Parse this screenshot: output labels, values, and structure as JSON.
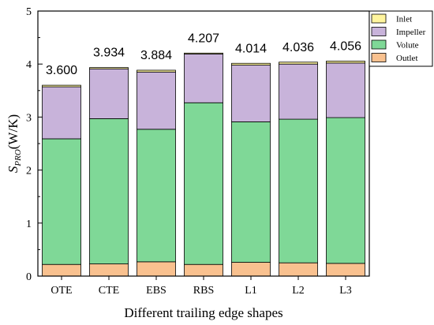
{
  "chart_data": {
    "type": "bar",
    "stacked": true,
    "categories": [
      "OTE",
      "CTE",
      "EBS",
      "RBS",
      "L1",
      "L2",
      "L3"
    ],
    "series": [
      {
        "name": "Outlet",
        "color": "#F9C18F",
        "values": [
          0.22,
          0.23,
          0.27,
          0.22,
          0.26,
          0.25,
          0.24
        ]
      },
      {
        "name": "Volute",
        "color": "#7FD897",
        "values": [
          2.37,
          2.74,
          2.5,
          3.05,
          2.65,
          2.71,
          2.75
        ]
      },
      {
        "name": "Impeller",
        "color": "#C8B3DA",
        "values": [
          0.98,
          0.94,
          1.08,
          0.92,
          1.07,
          1.04,
          1.03
        ]
      },
      {
        "name": "Inlet",
        "color": "#FFF59E",
        "values": [
          0.03,
          0.024,
          0.034,
          0.017,
          0.034,
          0.036,
          0.036
        ]
      }
    ],
    "totals": [
      "3.600",
      "3.934",
      "3.884",
      "4.207",
      "4.014",
      "4.036",
      "4.056"
    ],
    "ylabel_main": "S",
    "ylabel_sub": "PRO",
    "ylabel_unit": "(W/K)",
    "xlabel": "Different trailing edge shapes",
    "ylim": [
      0,
      5
    ],
    "yticks": [
      "0",
      "1",
      "2",
      "3",
      "4",
      "5"
    ],
    "legend_order": [
      "Inlet",
      "Impeller",
      "Volute",
      "Outlet"
    ],
    "legend_placement": "top-right",
    "grid": false
  }
}
